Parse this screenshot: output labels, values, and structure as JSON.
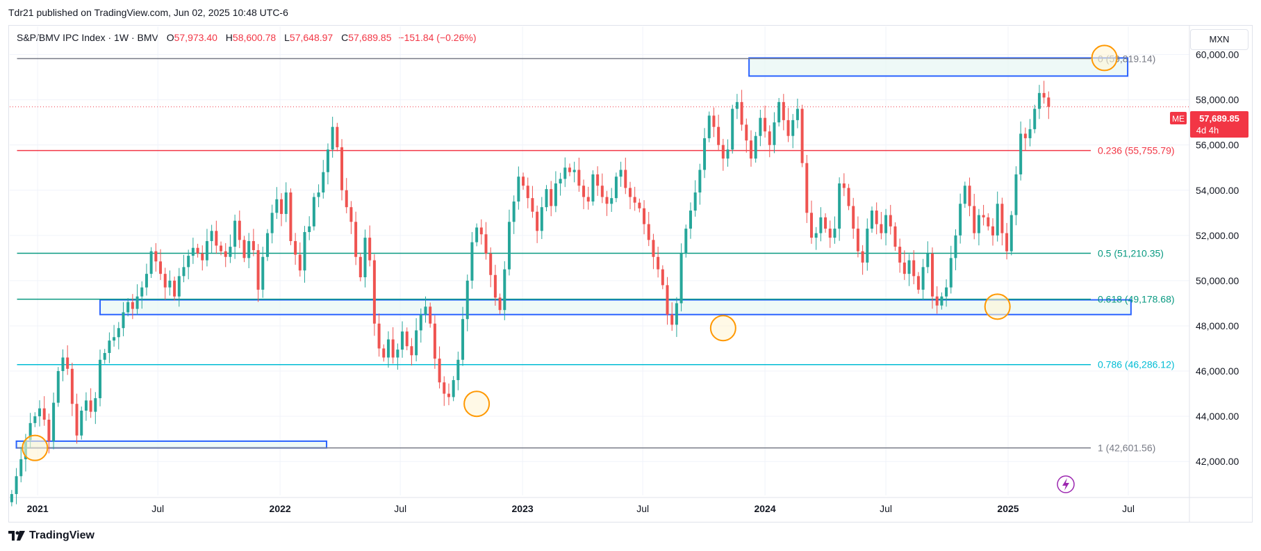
{
  "publisher": "Tdr21 published on TradingView.com, Jun 02, 2025 10:48 UTC-6",
  "legend": {
    "symbol": "S&P/BMV IPC Index · 1W · BMV",
    "open_label": "O",
    "open": "57,973.40",
    "high_label": "H",
    "high": "58,600.78",
    "low_label": "L",
    "low": "57,648.97",
    "close_label": "C",
    "close": "57,689.85",
    "change": "−151.84 (−0.26%)"
  },
  "currency": "MXN",
  "price_tag": {
    "exchange": "ME",
    "price": "57,689.85",
    "countdown": "4d 4h"
  },
  "brand": "TradingView",
  "colors": {
    "up": "#26a69a",
    "down": "#ef5350",
    "zone_border": "#2962ff",
    "zone_fill": "#e7f7f3",
    "marker": "#ff9800",
    "marker_fill": "#fff5d6"
  },
  "icons": {
    "brand": "tradingview-logo-icon",
    "flash": "lightning-icon"
  },
  "chart_data": {
    "type": "candlestick",
    "instrument": "S&P/BMV IPC Index",
    "interval": "1W",
    "currency": "MXN",
    "ylim": [
      40500,
      61000
    ],
    "y_ticks": [
      "42,000.00",
      "44,000.00",
      "46,000.00",
      "48,000.00",
      "50,000.00",
      "52,000.00",
      "54,000.00",
      "56,000.00",
      "58,000.00",
      "60,000.00"
    ],
    "y_tick_values": [
      42000,
      44000,
      46000,
      48000,
      50000,
      52000,
      54000,
      56000,
      58000,
      60000
    ],
    "x_ticks": [
      {
        "label": "2021",
        "date": "2021-01-01"
      },
      {
        "label": "Jul",
        "date": "2021-07-01"
      },
      {
        "label": "2022",
        "date": "2022-01-01"
      },
      {
        "label": "Jul",
        "date": "2022-07-01"
      },
      {
        "label": "2023",
        "date": "2023-01-01"
      },
      {
        "label": "Jul",
        "date": "2023-07-01"
      },
      {
        "label": "2024",
        "date": "2024-01-01"
      },
      {
        "label": "Jul",
        "date": "2024-07-01"
      },
      {
        "label": "2025",
        "date": "2025-01-01"
      },
      {
        "label": "Jul",
        "date": "2025-07-01"
      }
    ],
    "x_range": [
      "2020-11-20",
      "2025-10-01"
    ],
    "last_price": 57689.85,
    "fib_levels": [
      {
        "label": "0 (59,819.14)",
        "value": 59819.14,
        "color": "#787b86",
        "start": "2020-12-01"
      },
      {
        "label": "0.236 (55,755.79)",
        "value": 55755.79,
        "color": "#f23645",
        "start": "2020-12-01"
      },
      {
        "label": "0.5 (51,210.35)",
        "value": 51210.35,
        "color": "#089981",
        "start": "2020-12-01"
      },
      {
        "label": "0.618 (49,178.68)",
        "value": 49178.68,
        "color": "#089981",
        "start": "2020-12-01"
      },
      {
        "label": "0.786 (46,286.12)",
        "value": 46286.12,
        "color": "#00bcd4",
        "start": "2020-12-01"
      },
      {
        "label": "1 (42,601.56)",
        "value": 42601.56,
        "color": "#787b86",
        "start": "2020-12-01"
      }
    ],
    "zones": [
      {
        "from": "2023-12-08",
        "to": "2025-06-30",
        "low": 59050,
        "high": 59850
      },
      {
        "from": "2021-04-05",
        "to": "2025-07-05",
        "low": 48500,
        "high": 49150
      },
      {
        "from": "2020-11-30",
        "to": "2022-03-12",
        "low": 42600,
        "high": 42900
      }
    ],
    "markers": [
      {
        "date": "2020-12-28",
        "price": 42600
      },
      {
        "date": "2022-10-24",
        "price": 44550
      },
      {
        "date": "2023-10-30",
        "price": 47900
      },
      {
        "date": "2024-12-16",
        "price": 48850
      },
      {
        "date": "2025-05-26",
        "price": 59850
      }
    ],
    "weekly_closes": [
      40560,
      41350,
      42100,
      42950,
      43700,
      44000,
      44350,
      43850,
      42900,
      44600,
      46000,
      46600,
      46100,
      44550,
      43150,
      44250,
      44700,
      44200,
      44800,
      46500,
      46800,
      47350,
      47500,
      47900,
      48600,
      49050,
      48750,
      49300,
      49700,
      50300,
      51300,
      50850,
      50300,
      49700,
      50000,
      49300,
      50200,
      50600,
      51100,
      51450,
      51200,
      50900,
      51750,
      52200,
      51550,
      51300,
      51050,
      51500,
      52650,
      51800,
      51000,
      51750,
      51350,
      49600,
      51050,
      52100,
      53000,
      53600,
      52950,
      53900,
      51750,
      51150,
      50450,
      52150,
      52400,
      53700,
      53900,
      54800,
      55800,
      56800,
      55900,
      54000,
      53250,
      52600,
      51050,
      50150,
      51900,
      50900,
      48100,
      47000,
      46600,
      47400,
      46600,
      46950,
      47750,
      47100,
      46700,
      47800,
      48500,
      48850,
      48100,
      46550,
      45500,
      45000,
      44850,
      45600,
      46500,
      48300,
      50000,
      51700,
      52350,
      52050,
      51200,
      50250,
      49250,
      48700,
      50500,
      52600,
      53500,
      54600,
      54200,
      53650,
      53050,
      52200,
      53250,
      54050,
      53300,
      54300,
      54500,
      55000,
      54800,
      54900,
      54200,
      53700,
      53500,
      54700,
      54200,
      53700,
      53400,
      53650,
      54600,
      54900,
      54100,
      53700,
      53450,
      53200,
      52500,
      51800,
      51050,
      50500,
      49800,
      48500,
      48050,
      49000,
      51200,
      52300,
      53100,
      53900,
      54900,
      56300,
      57300,
      56800,
      56000,
      55400,
      55800,
      57600,
      57900,
      56900,
      56200,
      55400,
      56400,
      57200,
      56600,
      56000,
      57000,
      57900,
      57100,
      56400,
      57100,
      57600,
      55200,
      53000,
      51900,
      52100,
      52800,
      52300,
      51900,
      52300,
      54300,
      54100,
      53300,
      52300,
      51300,
      50800,
      52300,
      53100,
      52500,
      52100,
      52900,
      52400,
      51500,
      50800,
      50300,
      50900,
      50200,
      49600,
      50600,
      51200,
      49300,
      48900,
      49300,
      49700,
      51000,
      52000,
      53400,
      54200,
      53300,
      52100,
      52900,
      52800,
      52400,
      52000,
      53400,
      52100,
      51300,
      52900,
      54700,
      56500,
      56300,
      56700,
      57600,
      58300,
      58100,
      57690
    ]
  }
}
